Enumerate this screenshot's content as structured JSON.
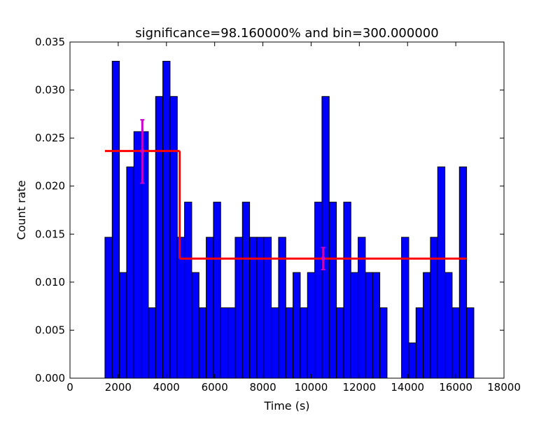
{
  "chart_data": {
    "type": "bar",
    "title": "significance=98.160000% and bin=300.000000",
    "xlabel": "Time (s)",
    "ylabel": "Count rate",
    "xlim": [
      0,
      18000
    ],
    "ylim": [
      0,
      0.035
    ],
    "xticks": [
      {
        "value": 0,
        "label": "0"
      },
      {
        "value": 2000,
        "label": "2000"
      },
      {
        "value": 4000,
        "label": "4000"
      },
      {
        "value": 6000,
        "label": "6000"
      },
      {
        "value": 8000,
        "label": "8000"
      },
      {
        "value": 10000,
        "label": "10000"
      },
      {
        "value": 12000,
        "label": "12000"
      },
      {
        "value": 14000,
        "label": "14000"
      },
      {
        "value": 16000,
        "label": "16000"
      },
      {
        "value": 18000,
        "label": "18000"
      }
    ],
    "yticks": [
      {
        "value": 0.0,
        "label": "0.000"
      },
      {
        "value": 0.005,
        "label": "0.005"
      },
      {
        "value": 0.01,
        "label": "0.010"
      },
      {
        "value": 0.015,
        "label": "0.015"
      },
      {
        "value": 0.02,
        "label": "0.020"
      },
      {
        "value": 0.025,
        "label": "0.025"
      },
      {
        "value": 0.03,
        "label": "0.030"
      },
      {
        "value": 0.035,
        "label": "0.035"
      }
    ],
    "grid": false,
    "histogram": {
      "bin_start": 1450,
      "bin_width": 300,
      "color": "#0000ff",
      "values": [
        0.01467,
        0.033,
        0.011,
        0.022,
        0.02567,
        0.02567,
        0.00733,
        0.02933,
        0.033,
        0.02933,
        0.01467,
        0.01833,
        0.011,
        0.00733,
        0.01467,
        0.01833,
        0.00733,
        0.00733,
        0.01467,
        0.01833,
        0.01467,
        0.01467,
        0.01467,
        0.00733,
        0.01467,
        0.00733,
        0.011,
        0.00733,
        0.011,
        0.01833,
        0.02933,
        0.01833,
        0.00733,
        0.01833,
        0.011,
        0.01467,
        0.011,
        0.011,
        0.00733,
        0.0,
        0.0,
        0.01467,
        0.00367,
        0.00733,
        0.011,
        0.01467,
        0.022,
        0.011,
        0.00733,
        0.022,
        0.00733
      ]
    },
    "blocks": {
      "color": "#ff0000",
      "segments": [
        {
          "x_start": 1450,
          "x_end": 4550,
          "value": 0.02365
        },
        {
          "x_start": 4550,
          "x_end": 16450,
          "value": 0.01245
        }
      ]
    },
    "error_bars": {
      "color": "#cc00cc",
      "points": [
        {
          "x": 3000,
          "y": 0.02365,
          "lower": 0.0203,
          "upper": 0.0269
        },
        {
          "x": 10500,
          "y": 0.01245,
          "lower": 0.0113,
          "upper": 0.0136
        }
      ]
    }
  }
}
